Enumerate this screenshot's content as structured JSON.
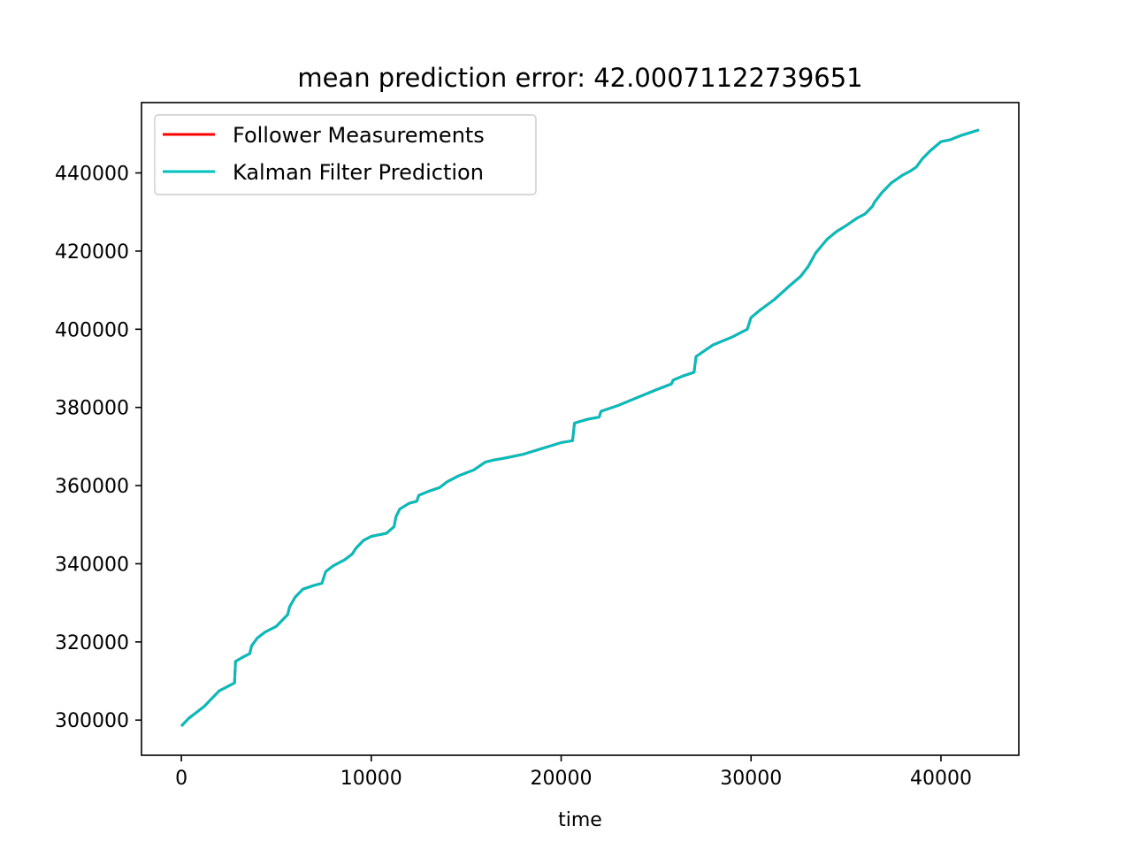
{
  "chart_data": {
    "type": "line",
    "title": "mean prediction error: 42.00071122739651",
    "xlabel": "time",
    "ylabel": "",
    "xlim": [
      -2100,
      44100
    ],
    "ylim": [
      291000,
      458000
    ],
    "xticks": [
      0,
      10000,
      20000,
      30000,
      40000
    ],
    "xtick_labels": [
      "0",
      "10000",
      "20000",
      "30000",
      "40000"
    ],
    "yticks": [
      300000,
      320000,
      340000,
      360000,
      380000,
      400000,
      420000,
      440000
    ],
    "ytick_labels": [
      "300000",
      "320000",
      "340000",
      "360000",
      "380000",
      "400000",
      "420000",
      "440000"
    ],
    "grid": false,
    "legend_position": "upper-left",
    "x": [
      0,
      400,
      800,
      1200,
      1600,
      2000,
      2400,
      2800,
      2850,
      3200,
      3600,
      3700,
      4000,
      4400,
      5000,
      5600,
      5700,
      6000,
      6400,
      7000,
      7400,
      7500,
      7600,
      8000,
      8600,
      9000,
      9200,
      9600,
      10000,
      10800,
      11200,
      11300,
      11500,
      12000,
      12400,
      12500,
      13000,
      13600,
      14000,
      14600,
      15400,
      16000,
      16400,
      17000,
      18000,
      19000,
      20000,
      20600,
      20700,
      21400,
      22000,
      22100,
      23000,
      24000,
      25000,
      25800,
      25900,
      26400,
      27000,
      27100,
      27400,
      28000,
      29000,
      29800,
      30000,
      30500,
      31200,
      32000,
      32600,
      33000,
      33400,
      34000,
      34500,
      35000,
      35600,
      36000,
      36400,
      36500,
      36900,
      37400,
      38000,
      38400,
      38700,
      39000,
      39400,
      40000,
      40500,
      41000,
      42000
    ],
    "series": [
      {
        "name": "Follower Measurements",
        "color": "#ff0000",
        "values": [
          298500,
          300500,
          302000,
          303500,
          305500,
          307500,
          308500,
          309500,
          315000,
          316000,
          317000,
          319000,
          321000,
          322500,
          324000,
          327000,
          329000,
          331500,
          333500,
          334500,
          335000,
          336500,
          338000,
          339500,
          341000,
          342500,
          344000,
          346000,
          347000,
          347800,
          349500,
          352000,
          354000,
          355500,
          356000,
          357500,
          358500,
          359500,
          361000,
          362500,
          364000,
          366000,
          366500,
          367000,
          368000,
          369500,
          371000,
          371500,
          376000,
          377000,
          377500,
          379000,
          380500,
          382500,
          384500,
          386000,
          387000,
          388000,
          389000,
          393000,
          394000,
          396000,
          398000,
          400000,
          403000,
          405000,
          407500,
          411000,
          413500,
          416000,
          419500,
          423000,
          425000,
          426500,
          428500,
          429500,
          431500,
          432500,
          435000,
          437500,
          439500,
          440500,
          441500,
          443500,
          445500,
          448000,
          448500,
          449500,
          451000
        ]
      },
      {
        "name": "Kalman Filter Prediction",
        "color": "#00bfbf",
        "values": [
          298500,
          300500,
          302000,
          303500,
          305500,
          307500,
          308500,
          309500,
          315000,
          316000,
          317000,
          319000,
          321000,
          322500,
          324000,
          327000,
          329000,
          331500,
          333500,
          334500,
          335000,
          336500,
          338000,
          339500,
          341000,
          342500,
          344000,
          346000,
          347000,
          347800,
          349500,
          352000,
          354000,
          355500,
          356000,
          357500,
          358500,
          359500,
          361000,
          362500,
          364000,
          366000,
          366500,
          367000,
          368000,
          369500,
          371000,
          371500,
          376000,
          377000,
          377500,
          379000,
          380500,
          382500,
          384500,
          386000,
          387000,
          388000,
          389000,
          393000,
          394000,
          396000,
          398000,
          400000,
          403000,
          405000,
          407500,
          411000,
          413500,
          416000,
          419500,
          423000,
          425000,
          426500,
          428500,
          429500,
          431500,
          432500,
          435000,
          437500,
          439500,
          440500,
          441500,
          443500,
          445500,
          448000,
          448500,
          449500,
          451000
        ]
      }
    ]
  }
}
